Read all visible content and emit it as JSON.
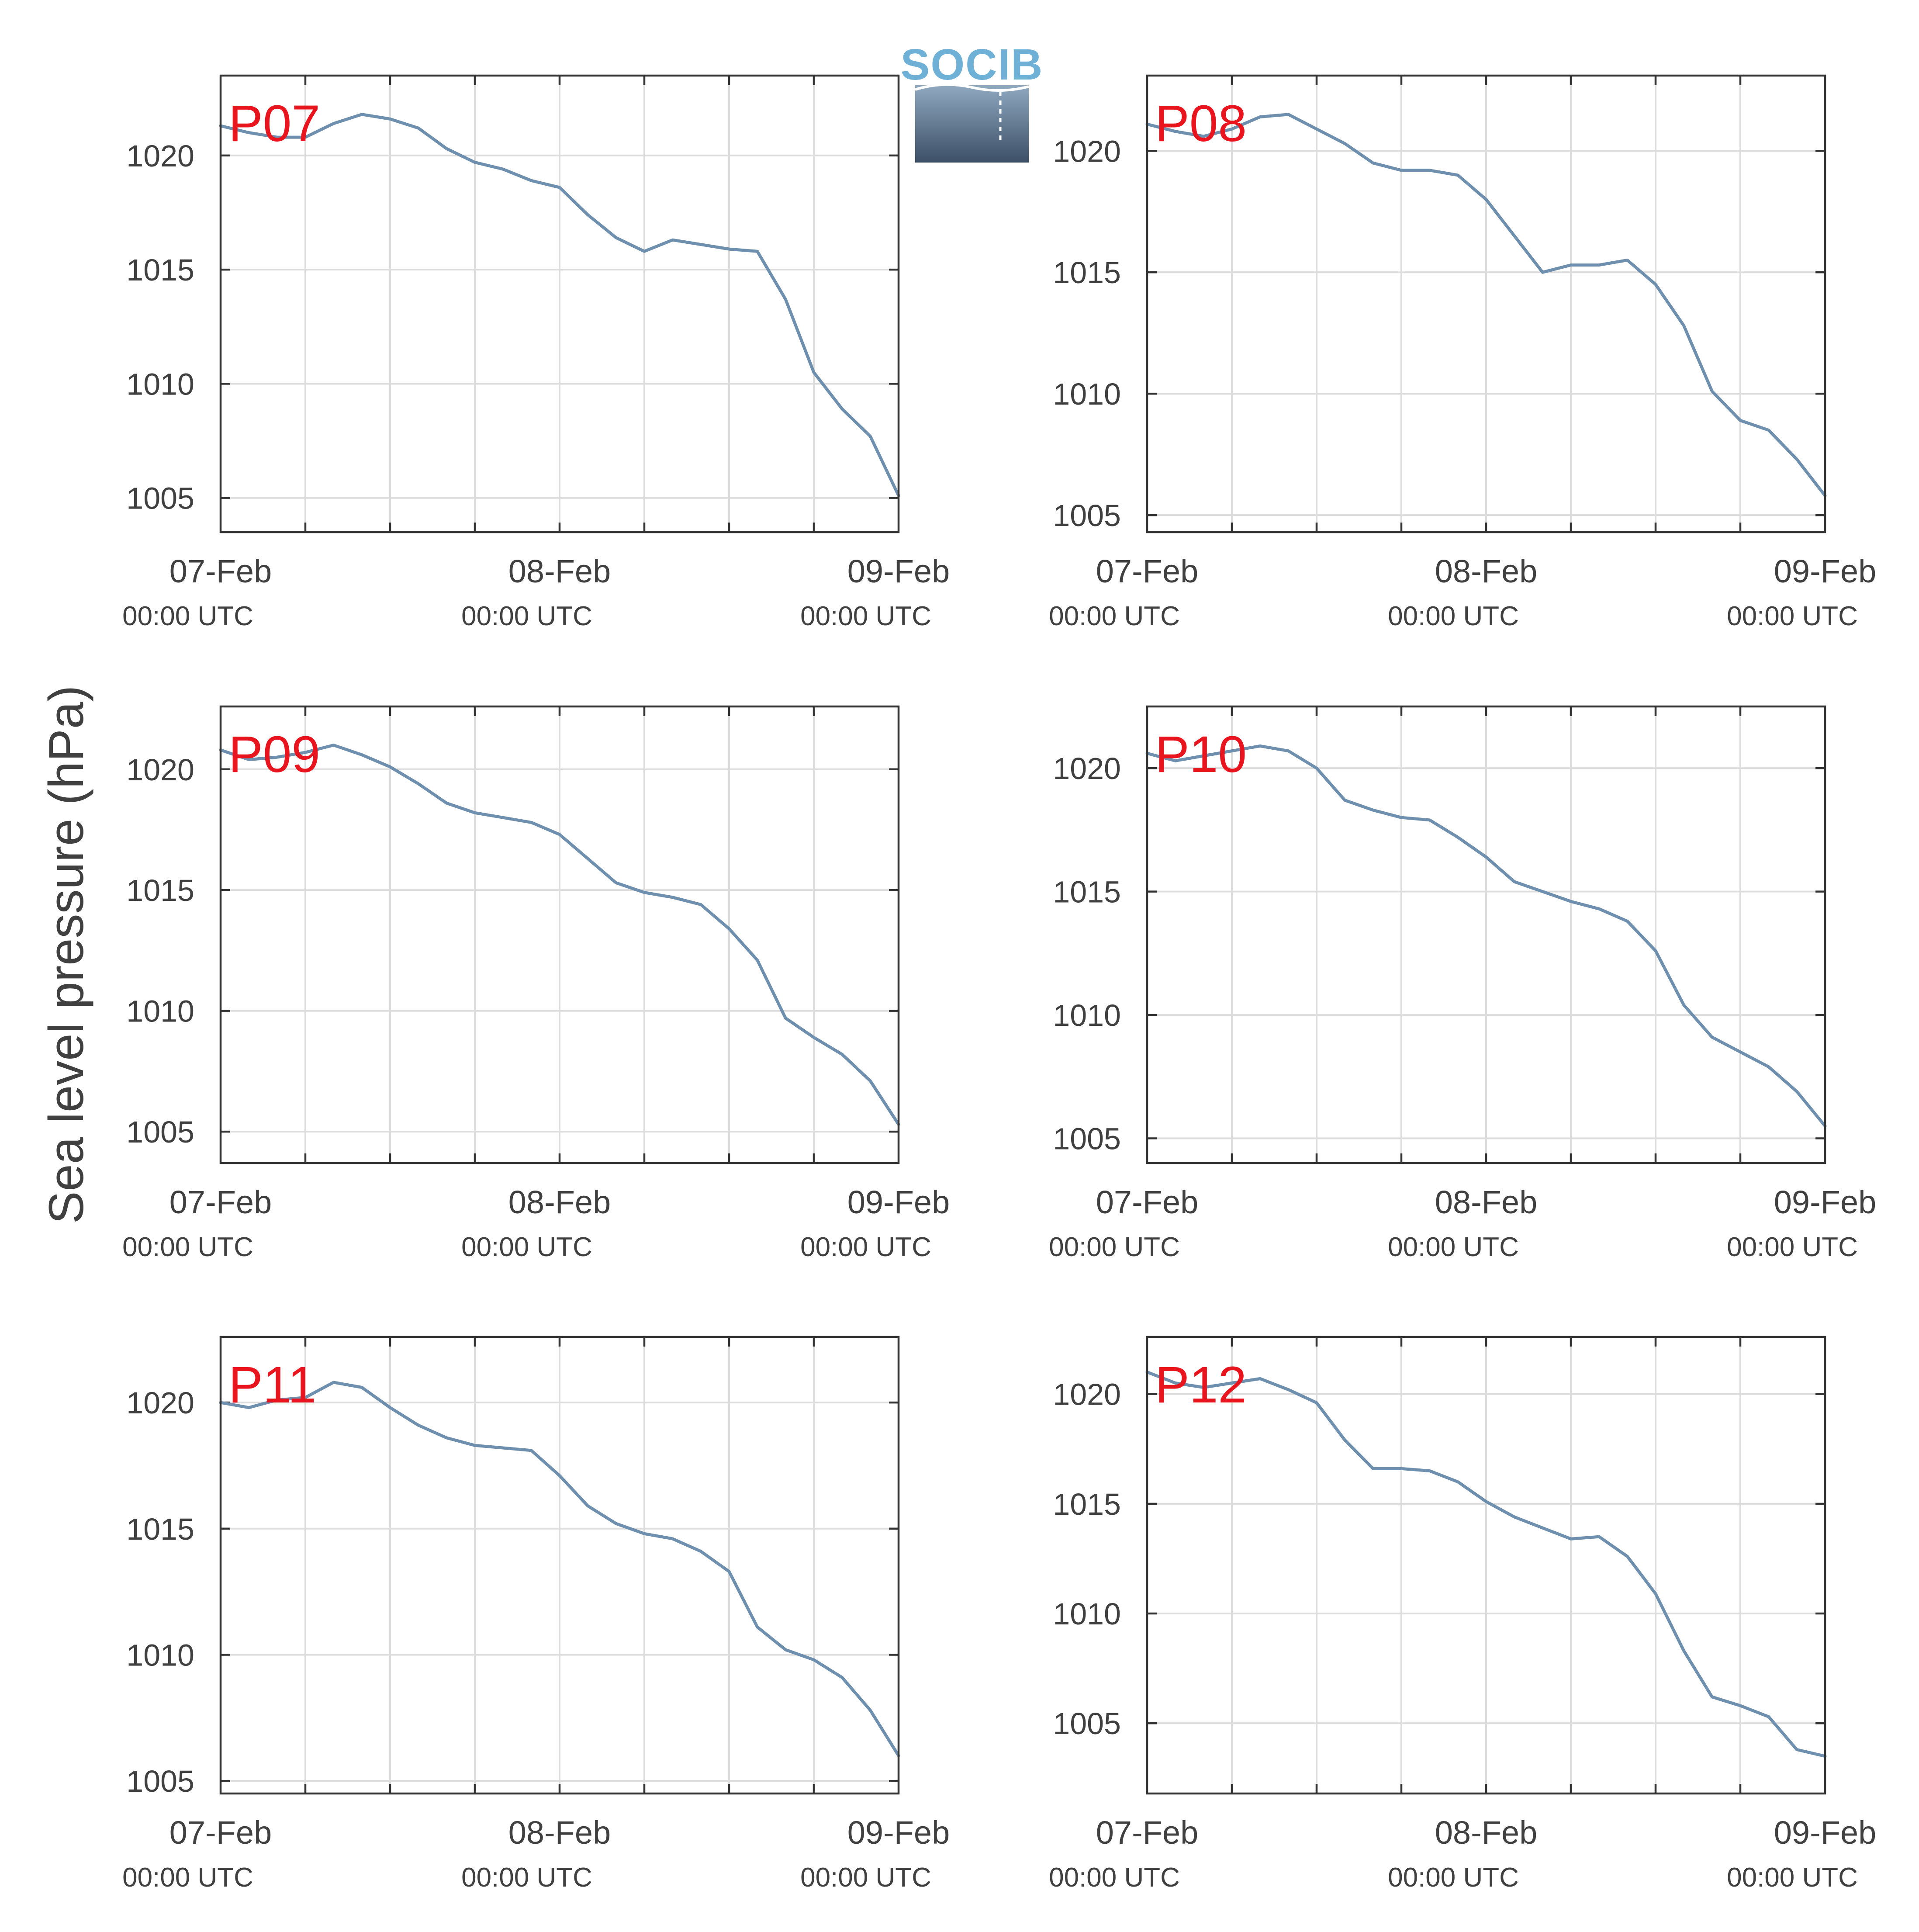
{
  "figure": {
    "ylabel": "Sea level pressure (hPa)",
    "logo_text": "SOCIB",
    "colors": {
      "line": "#6e8fae",
      "panel_label": "#e8141e",
      "logo_text": "#6fb0d6",
      "logo_top": "#8fa9c0",
      "logo_bottom": "#3c4f66"
    }
  },
  "chart_data": [
    {
      "type": "line",
      "label": "P07",
      "x_start": "2024-02-07T00:00",
      "x_end": "2024-02-09T00:00",
      "x_ticks": [
        {
          "date": "07-Feb",
          "time": "00:00 UTC"
        },
        {
          "date": "08-Feb",
          "time": "00:00 UTC"
        },
        {
          "date": "09-Feb",
          "time": "00:00 UTC"
        }
      ],
      "ylim": [
        1003.5,
        1023.5
      ],
      "yticks": [
        1005,
        1010,
        1015,
        1020
      ],
      "grid": true,
      "series": [
        {
          "x_hours": [
            0,
            2,
            4,
            6,
            8,
            10,
            12,
            14,
            16,
            18,
            20,
            22,
            24,
            26,
            28,
            30,
            32,
            34,
            36,
            38,
            40,
            42,
            44,
            46,
            48
          ],
          "values": [
            1021.3,
            1021.0,
            1020.8,
            1020.8,
            1021.4,
            1021.8,
            1021.6,
            1021.2,
            1020.3,
            1019.7,
            1019.4,
            1018.9,
            1018.6,
            1017.4,
            1016.4,
            1015.8,
            1016.3,
            1016.1,
            1015.9,
            1015.8,
            1013.7,
            1010.5,
            1008.9,
            1007.7,
            1005.1
          ]
        }
      ]
    },
    {
      "type": "line",
      "label": "P08",
      "x_start": "2024-02-07T00:00",
      "x_end": "2024-02-09T00:00",
      "x_ticks": [
        {
          "date": "07-Feb",
          "time": "00:00 UTC"
        },
        {
          "date": "08-Feb",
          "time": "00:00 UTC"
        },
        {
          "date": "09-Feb",
          "time": "00:00 UTC"
        }
      ],
      "ylim": [
        1004.3,
        1023.1
      ],
      "yticks": [
        1005,
        1010,
        1015,
        1020
      ],
      "grid": true,
      "series": [
        {
          "x_hours": [
            0,
            2,
            4,
            6,
            8,
            10,
            12,
            14,
            16,
            18,
            20,
            22,
            24,
            26,
            28,
            30,
            32,
            34,
            36,
            38,
            40,
            42,
            44,
            46,
            48
          ],
          "values": [
            1021.1,
            1020.8,
            1020.6,
            1020.9,
            1021.4,
            1021.5,
            1020.9,
            1020.3,
            1019.5,
            1019.2,
            1019.2,
            1019.0,
            1018.0,
            1016.5,
            1015.0,
            1015.3,
            1015.3,
            1015.5,
            1014.5,
            1012.8,
            1010.1,
            1008.9,
            1008.5,
            1007.3,
            1005.8
          ]
        }
      ]
    },
    {
      "type": "line",
      "label": "P09",
      "x_start": "2024-02-07T00:00",
      "x_end": "2024-02-09T00:00",
      "x_ticks": [
        {
          "date": "07-Feb",
          "time": "00:00 UTC"
        },
        {
          "date": "08-Feb",
          "time": "00:00 UTC"
        },
        {
          "date": "09-Feb",
          "time": "00:00 UTC"
        }
      ],
      "ylim": [
        1003.7,
        1022.6
      ],
      "yticks": [
        1005,
        1010,
        1015,
        1020
      ],
      "grid": true,
      "series": [
        {
          "x_hours": [
            0,
            2,
            4,
            6,
            8,
            10,
            12,
            14,
            16,
            18,
            20,
            22,
            24,
            26,
            28,
            30,
            32,
            34,
            36,
            38,
            40,
            42,
            44,
            46,
            48
          ],
          "values": [
            1020.8,
            1020.4,
            1020.5,
            1020.7,
            1021.0,
            1020.6,
            1020.1,
            1019.4,
            1018.6,
            1018.2,
            1018.0,
            1017.8,
            1017.3,
            1016.3,
            1015.3,
            1014.9,
            1014.7,
            1014.4,
            1013.4,
            1012.1,
            1009.7,
            1008.9,
            1008.2,
            1007.1,
            1005.3
          ]
        }
      ]
    },
    {
      "type": "line",
      "label": "P10",
      "x_start": "2024-02-07T00:00",
      "x_end": "2024-02-09T00:00",
      "x_ticks": [
        {
          "date": "07-Feb",
          "time": "00:00 UTC"
        },
        {
          "date": "08-Feb",
          "time": "00:00 UTC"
        },
        {
          "date": "09-Feb",
          "time": "00:00 UTC"
        }
      ],
      "ylim": [
        1004.0,
        1022.5
      ],
      "yticks": [
        1005,
        1010,
        1015,
        1020
      ],
      "grid": true,
      "series": [
        {
          "x_hours": [
            0,
            2,
            4,
            6,
            8,
            10,
            12,
            14,
            16,
            18,
            20,
            22,
            24,
            26,
            28,
            30,
            32,
            34,
            36,
            38,
            40,
            42,
            44,
            46,
            48
          ],
          "values": [
            1020.6,
            1020.3,
            1020.5,
            1020.7,
            1020.9,
            1020.7,
            1020.0,
            1018.7,
            1018.3,
            1018.0,
            1017.9,
            1017.2,
            1016.4,
            1015.4,
            1015.0,
            1014.6,
            1014.3,
            1013.8,
            1012.6,
            1010.4,
            1009.1,
            1008.5,
            1007.9,
            1006.9,
            1005.5
          ]
        }
      ]
    },
    {
      "type": "line",
      "label": "P11",
      "x_start": "2024-02-07T00:00",
      "x_end": "2024-02-09T00:00",
      "x_ticks": [
        {
          "date": "07-Feb",
          "time": "00:00 UTC"
        },
        {
          "date": "08-Feb",
          "time": "00:00 UTC"
        },
        {
          "date": "09-Feb",
          "time": "00:00 UTC"
        }
      ],
      "ylim": [
        1004.5,
        1022.6
      ],
      "yticks": [
        1005,
        1010,
        1015,
        1020
      ],
      "grid": true,
      "series": [
        {
          "x_hours": [
            0,
            2,
            4,
            6,
            8,
            10,
            12,
            14,
            16,
            18,
            20,
            22,
            24,
            26,
            28,
            30,
            32,
            34,
            36,
            38,
            40,
            42,
            44,
            46,
            48
          ],
          "values": [
            1020.0,
            1019.8,
            1020.1,
            1020.2,
            1020.8,
            1020.6,
            1019.8,
            1019.1,
            1018.6,
            1018.3,
            1018.2,
            1018.1,
            1017.1,
            1015.9,
            1015.2,
            1014.8,
            1014.6,
            1014.1,
            1013.3,
            1011.1,
            1010.2,
            1009.8,
            1009.1,
            1007.8,
            1006.0
          ]
        }
      ]
    },
    {
      "type": "line",
      "label": "P12",
      "x_start": "2024-02-07T00:00",
      "x_end": "2024-02-09T00:00",
      "x_ticks": [
        {
          "date": "07-Feb",
          "time": "00:00 UTC"
        },
        {
          "date": "08-Feb",
          "time": "00:00 UTC"
        },
        {
          "date": "09-Feb",
          "time": "00:00 UTC"
        }
      ],
      "ylim": [
        1001.8,
        1022.6
      ],
      "yticks": [
        1005,
        1010,
        1015,
        1020
      ],
      "grid": true,
      "series": [
        {
          "x_hours": [
            0,
            2,
            4,
            6,
            8,
            10,
            12,
            14,
            16,
            18,
            20,
            22,
            24,
            26,
            28,
            30,
            32,
            34,
            36,
            38,
            40,
            42,
            44,
            46,
            48
          ],
          "values": [
            1021.0,
            1020.5,
            1020.3,
            1020.5,
            1020.7,
            1020.2,
            1019.6,
            1017.9,
            1016.6,
            1016.6,
            1016.5,
            1016.0,
            1015.1,
            1014.4,
            1013.9,
            1013.4,
            1013.5,
            1012.6,
            1010.9,
            1008.3,
            1006.2,
            1005.8,
            1005.3,
            1003.8,
            1003.5
          ]
        }
      ]
    }
  ]
}
